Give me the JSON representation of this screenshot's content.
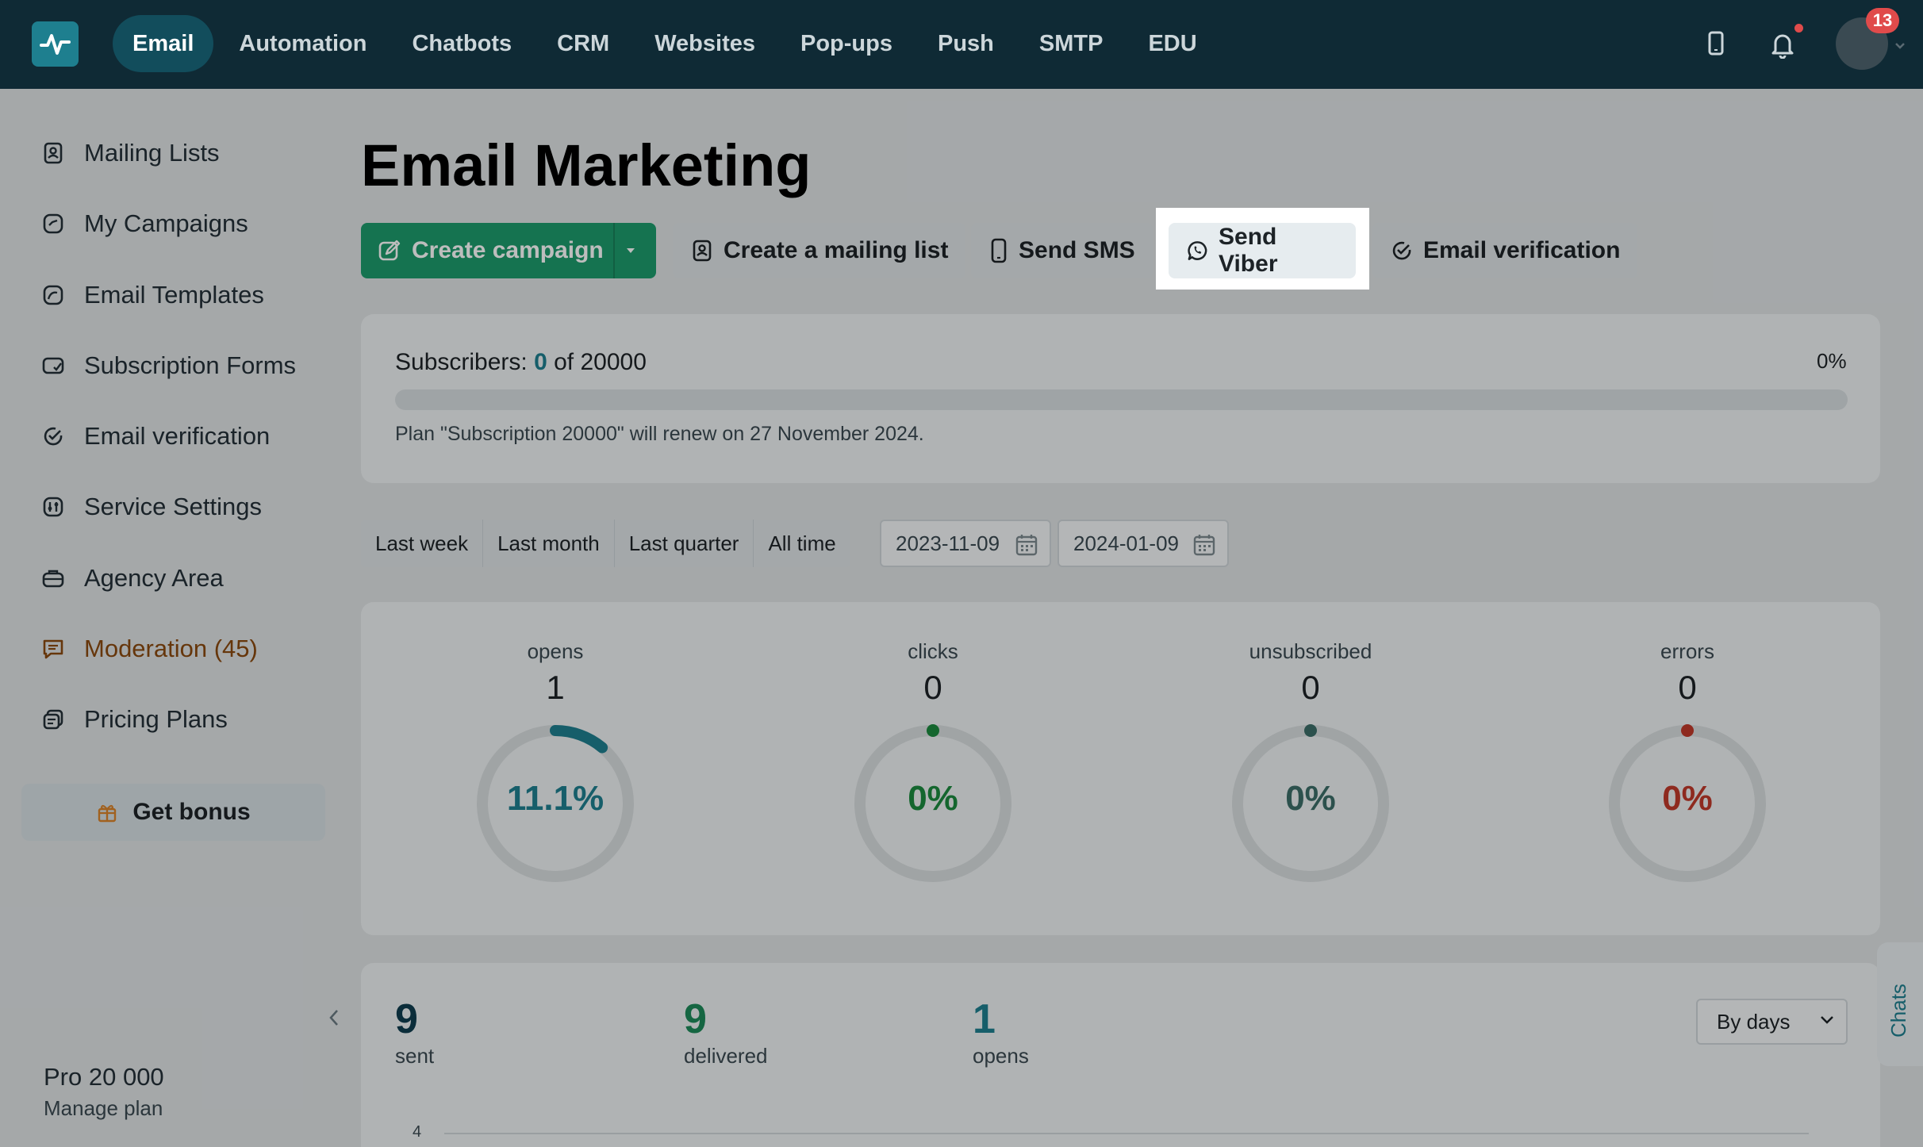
{
  "topbar": {
    "nav": [
      {
        "label": "Email",
        "active": true
      },
      {
        "label": "Automation"
      },
      {
        "label": "Chatbots"
      },
      {
        "label": "CRM"
      },
      {
        "label": "Websites"
      },
      {
        "label": "Pop-ups"
      },
      {
        "label": "Push"
      },
      {
        "label": "SMTP"
      },
      {
        "label": "EDU"
      }
    ],
    "notification_count": "13"
  },
  "sidebar": {
    "items": [
      {
        "label": "Mailing Lists",
        "icon": "contact-list-icon"
      },
      {
        "label": "My Campaigns",
        "icon": "campaign-icon"
      },
      {
        "label": "Email Templates",
        "icon": "template-icon"
      },
      {
        "label": "Subscription Forms",
        "icon": "form-icon"
      },
      {
        "label": "Email verification",
        "icon": "check-badge-icon"
      },
      {
        "label": "Service Settings",
        "icon": "settings-sliders-icon"
      },
      {
        "label": "Agency Area",
        "icon": "briefcase-icon"
      },
      {
        "label": "Moderation (45)",
        "icon": "comment-icon"
      },
      {
        "label": "Pricing Plans",
        "icon": "pricing-icon"
      }
    ],
    "bonus_label": "Get bonus",
    "plan_name": "Pro 20 000",
    "manage_plan": "Manage plan"
  },
  "main": {
    "title": "Email Marketing",
    "actions": {
      "create_campaign": "Create campaign",
      "create_list": "Create a mailing list",
      "send_sms": "Send SMS",
      "send_viber": "Send Viber",
      "email_verification": "Email verification"
    },
    "subscribers": {
      "label": "Subscribers:",
      "current": "0",
      "of_text": "of 20000",
      "percent_text": "0%",
      "fill_fraction": 0,
      "plan_note": "Plan \"Subscription 20000\" will renew on 27 November 2024."
    },
    "period_tabs": [
      "Last week",
      "Last month",
      "Last quarter",
      "All time"
    ],
    "date_from": "2023-11-09",
    "date_to": "2024-01-09",
    "stats": [
      {
        "label": "opens",
        "value": "1",
        "percent": "11.1%",
        "fraction": 0.111,
        "color": "#1e7f8f"
      },
      {
        "label": "clicks",
        "value": "0",
        "percent": "0%",
        "fraction": 0,
        "color": "#1b8a3e"
      },
      {
        "label": "unsubscribed",
        "value": "0",
        "percent": "0%",
        "fraction": 0,
        "color": "#3c6e68"
      },
      {
        "label": "errors",
        "value": "0",
        "percent": "0%",
        "fraction": 0,
        "color": "#c0392b"
      }
    ],
    "totals": [
      {
        "value": "9",
        "label": "sent",
        "color": "#0f3d4f"
      },
      {
        "value": "9",
        "label": "delivered",
        "color": "#1d8a5a"
      },
      {
        "value": "1",
        "label": "opens",
        "color": "#1e7f8f"
      }
    ],
    "group_by": "By days",
    "chart_axis_tick": "4"
  },
  "chats_label": "Chats"
}
